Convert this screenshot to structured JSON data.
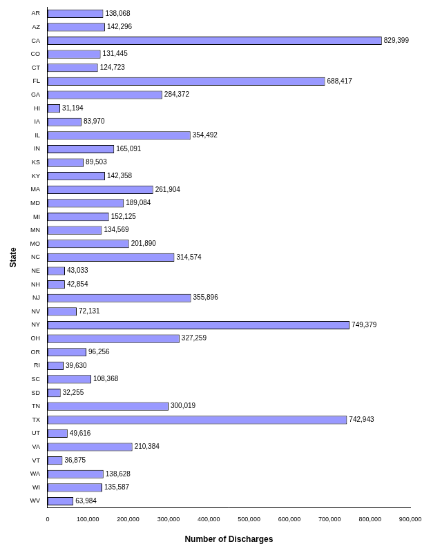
{
  "chart_data": {
    "type": "bar",
    "orientation": "horizontal",
    "xlabel": "Number of Discharges",
    "ylabel": "State",
    "categories": [
      "AR",
      "AZ",
      "CA",
      "CO",
      "CT",
      "FL",
      "GA",
      "HI",
      "IA",
      "IL",
      "IN",
      "KS",
      "KY",
      "MA",
      "MD",
      "MI",
      "MN",
      "MO",
      "NC",
      "NE",
      "NH",
      "NJ",
      "NV",
      "NY",
      "OH",
      "OR",
      "RI",
      "SC",
      "SD",
      "TN",
      "TX",
      "UT",
      "VA",
      "VT",
      "WA",
      "WI",
      "WV"
    ],
    "values": [
      138068,
      142296,
      829399,
      131445,
      124723,
      688417,
      284372,
      31194,
      83970,
      354492,
      165091,
      89503,
      142358,
      261904,
      189084,
      152125,
      134569,
      201890,
      314574,
      43033,
      42854,
      355896,
      72131,
      749379,
      327259,
      96256,
      39630,
      108368,
      32255,
      300019,
      742943,
      49616,
      210384,
      36875,
      138628,
      135587,
      63984
    ],
    "value_labels": [
      "138,068",
      "142,296",
      "829,399",
      "131,445",
      "124,723",
      "688,417",
      "284,372",
      "31,194",
      "83,970",
      "354,492",
      "165,091",
      "89,503",
      "142,358",
      "261,904",
      "189,084",
      "152,125",
      "134,569",
      "201,890",
      "314,574",
      "43,033",
      "42,854",
      "355,896",
      "72,131",
      "749,379",
      "327,259",
      "96,256",
      "39,630",
      "108,368",
      "32,255",
      "300,019",
      "742,943",
      "49,616",
      "210,384",
      "36,875",
      "138,628",
      "135,587",
      "63,984"
    ],
    "data_labels": true,
    "color": "#9999ff",
    "xlim": [
      0,
      900000
    ],
    "xticks": [
      0,
      {
        "value": 100000,
        "label": "100,000"
      },
      {
        "value": 200000,
        "label": "200,000"
      },
      {
        "value": 300000,
        "label": "300,000"
      },
      {
        "value": 400000,
        "label": "400,000"
      },
      {
        "value": 500000,
        "label": "500,000"
      },
      {
        "value": 600000,
        "label": "600,000"
      },
      {
        "value": 700000,
        "label": "700,000"
      },
      {
        "value": 800000,
        "label": "800,000"
      },
      {
        "value": 900000,
        "label": "900,000"
      }
    ],
    "grid": false
  }
}
